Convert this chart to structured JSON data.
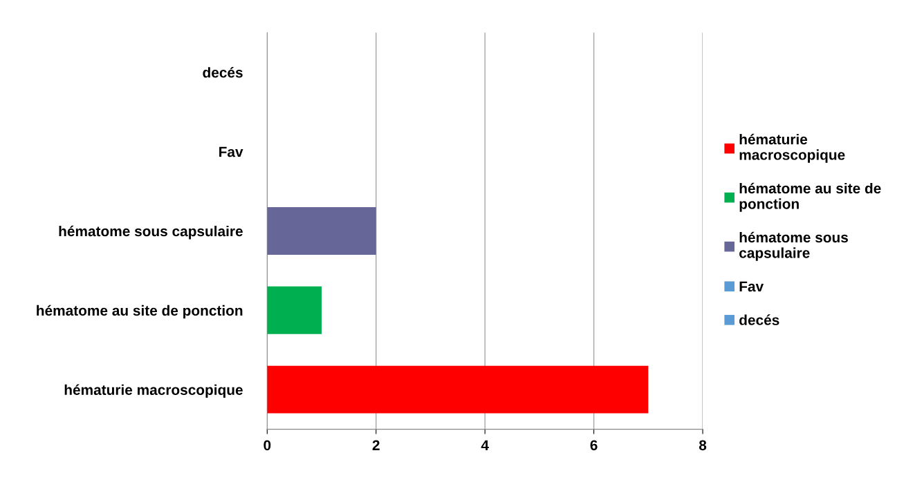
{
  "chart_data": {
    "type": "bar",
    "orientation": "horizontal",
    "categories": [
      "decés",
      "Fav",
      "hématome sous capsulaire",
      "hématome au site de ponction",
      "hématurie macroscopique"
    ],
    "series": [
      {
        "name": "hématurie macroscopique",
        "color": "#ff0000",
        "values": [
          null,
          null,
          null,
          null,
          7
        ]
      },
      {
        "name": "hématome au site de ponction",
        "color": "#00b050",
        "values": [
          null,
          null,
          null,
          1,
          null
        ]
      },
      {
        "name": "hématome sous capsulaire",
        "color": "#676699",
        "values": [
          null,
          null,
          2,
          null,
          null
        ]
      },
      {
        "name": "Fav",
        "color": "#5b9bd5",
        "values": [
          null,
          0,
          null,
          null,
          null
        ]
      },
      {
        "name": "decés",
        "color": "#5b9bd5",
        "values": [
          0,
          null,
          null,
          null,
          null
        ]
      }
    ],
    "xlim": [
      0,
      8
    ],
    "xticks": [
      0,
      2,
      4,
      6,
      8
    ],
    "grid": "x",
    "legend": "right"
  }
}
